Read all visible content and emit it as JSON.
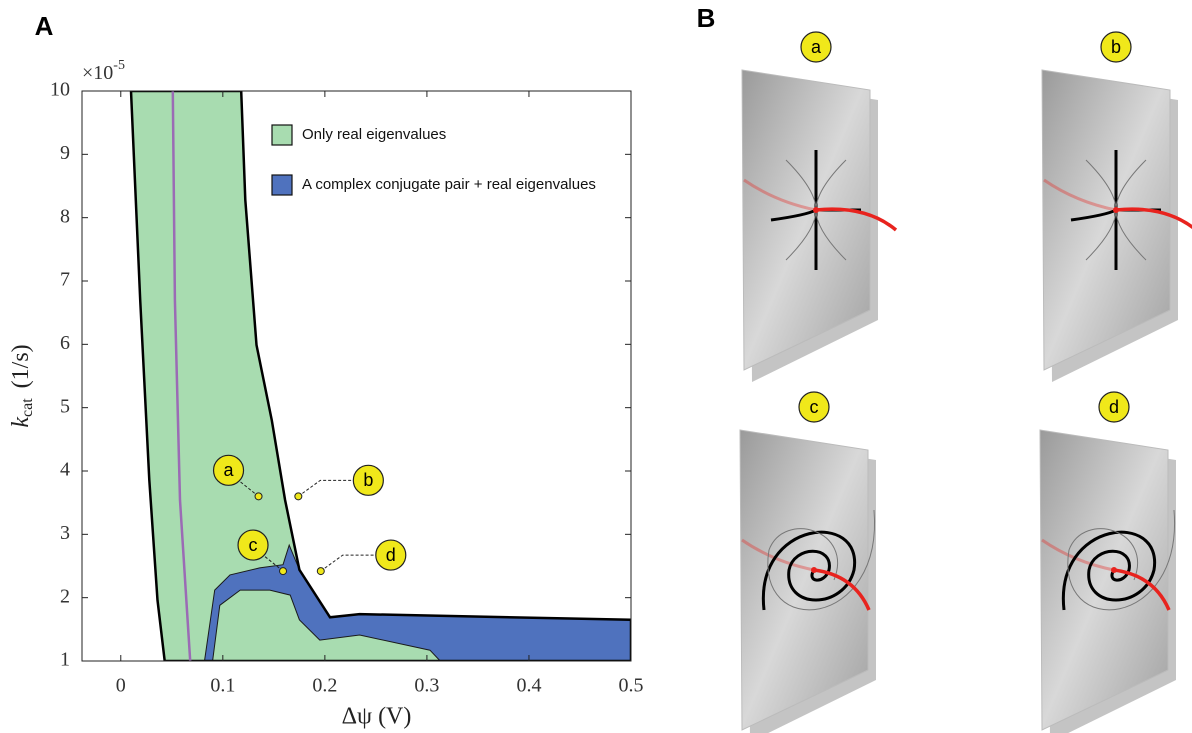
{
  "panel_labels": [
    "A",
    "B"
  ],
  "chart_data": {
    "type": "region",
    "x_label": "Δψ (V)",
    "y_label": {
      "symbol": "k",
      "subscript": "cat",
      "unit": "(1/s)"
    },
    "y_multiplier": {
      "base": "×10",
      "exponent": "-5"
    },
    "xlim": [
      -0.038,
      0.5
    ],
    "ylim": [
      1,
      10
    ],
    "xticks": [
      0,
      0.1,
      0.2,
      0.3,
      0.4,
      0.5
    ],
    "yticks": [
      1,
      2,
      3,
      4,
      5,
      6,
      7,
      8,
      9,
      10
    ],
    "series": [
      {
        "name": "Only real eigenvalues",
        "color": "#a8dcb0",
        "x": [
          0.01,
          0.019,
          0.028,
          0.036,
          0.043,
          0.5,
          0.5,
          0.234,
          0.205,
          0.175,
          0.161,
          0.148,
          0.133,
          0.122,
          0.118
        ],
        "values": [
          10,
          6.7,
          3.86,
          1.96,
          1,
          1,
          1.65,
          1.74,
          1.69,
          2.44,
          3.54,
          4.8,
          5.99,
          8.28,
          10
        ]
      },
      {
        "name": "A complex conjugate pair + real eigenvalues",
        "color": "#4f72be",
        "x": [
          0.082,
          0.092,
          0.107,
          0.136,
          0.159,
          0.165,
          0.175,
          0.205,
          0.234,
          0.5,
          0.5,
          0.313,
          0.303,
          0.234,
          0.195,
          0.175,
          0.166,
          0.146,
          0.117,
          0.097,
          0.09
        ],
        "values": [
          1,
          2.12,
          2.36,
          2.47,
          2.52,
          2.83,
          2.44,
          1.69,
          1.74,
          1.65,
          1,
          1,
          1.17,
          1.41,
          1.33,
          1.65,
          2.04,
          2.12,
          2.12,
          1.88,
          1
        ]
      }
    ],
    "lines": [
      {
        "color": "#9b6bb5",
        "x": [
          0.051,
          0.053,
          0.058,
          0.068
        ],
        "values": [
          10,
          6.7,
          3.54,
          1
        ]
      }
    ],
    "points": [
      {
        "label": "a",
        "x": 0.135,
        "y": 3.6
      },
      {
        "label": "b",
        "x": 0.174,
        "y": 3.6
      },
      {
        "label": "c",
        "x": 0.159,
        "y": 2.42
      },
      {
        "label": "d",
        "x": 0.196,
        "y": 2.42
      }
    ],
    "legend": "upper right"
  },
  "panel_b": {
    "labels": [
      "a",
      "b",
      "c",
      "d"
    ]
  }
}
